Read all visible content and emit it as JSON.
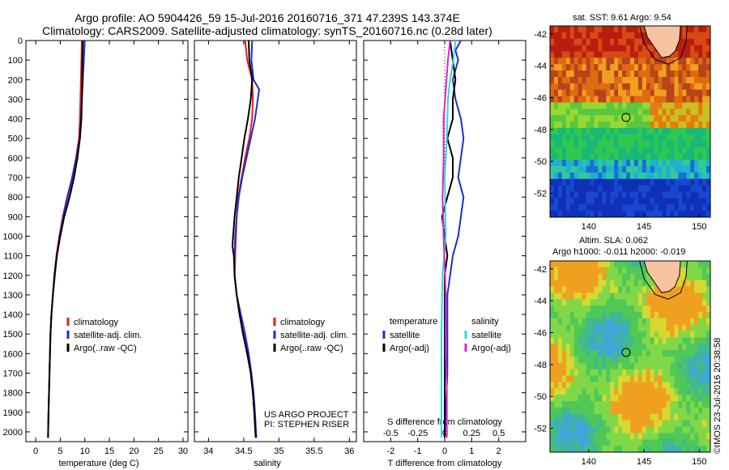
{
  "header": {
    "line1": "Argo profile: AO 5904426_59 15-Jul-2016 20160716_371 47.239S 143.374E",
    "line2": "Climatology: CARS2009. Satellite-adjusted climatology: synTS_20160716.nc (0.28d later)"
  },
  "colors": {
    "climatology": "#e41a1c",
    "satellite": "#1f2bd4",
    "argo": "#000000",
    "argo_salinity_diff": "#e020d0",
    "satellite_salinity_diff": "#30d8d8",
    "land": "#f7c3a0"
  },
  "chart_data": [
    {
      "type": "line",
      "panel": "temperature",
      "xlabel": "temperature (deg C)",
      "ylabel": "",
      "xlim": [
        -2,
        31
      ],
      "ylim": [
        2050,
        0
      ],
      "x_ticks": [
        0,
        5,
        10,
        15,
        20,
        25,
        30
      ],
      "y_ticks": [
        0,
        100,
        200,
        300,
        400,
        500,
        600,
        700,
        800,
        900,
        1000,
        1100,
        1200,
        1300,
        1400,
        1500,
        1600,
        1700,
        1800,
        1900,
        2000
      ],
      "legend_position": "lower-middle",
      "series": [
        {
          "name": "climatology",
          "color_key": "climatology",
          "points": [
            [
              9.4,
              0
            ],
            [
              9.3,
              100
            ],
            [
              9.2,
              200
            ],
            [
              9.1,
              300
            ],
            [
              9.0,
              400
            ],
            [
              8.8,
              500
            ],
            [
              8.2,
              600
            ],
            [
              7.4,
              700
            ],
            [
              6.4,
              800
            ],
            [
              5.5,
              900
            ],
            [
              4.8,
              1000
            ],
            [
              4.2,
              1100
            ],
            [
              3.8,
              1200
            ],
            [
              3.5,
              1300
            ],
            [
              3.2,
              1400
            ],
            [
              3.0,
              1500
            ],
            [
              2.9,
              1600
            ],
            [
              2.8,
              1700
            ],
            [
              2.7,
              1800
            ],
            [
              2.6,
              1900
            ],
            [
              2.5,
              2030
            ]
          ]
        },
        {
          "name": "satellite-adj. clim.",
          "color_key": "satellite",
          "points": [
            [
              10.0,
              0
            ],
            [
              9.8,
              100
            ],
            [
              9.6,
              200
            ],
            [
              9.4,
              300
            ],
            [
              9.2,
              400
            ],
            [
              9.0,
              500
            ],
            [
              8.3,
              600
            ],
            [
              7.5,
              700
            ],
            [
              6.5,
              800
            ],
            [
              5.6,
              900
            ],
            [
              4.9,
              1000
            ],
            [
              4.3,
              1100
            ],
            [
              3.9,
              1200
            ],
            [
              3.5,
              1300
            ],
            [
              3.2,
              1400
            ],
            [
              3.0,
              1500
            ],
            [
              2.9,
              1600
            ],
            [
              2.8,
              1700
            ],
            [
              2.7,
              1800
            ],
            [
              2.6,
              1900
            ],
            [
              2.5,
              2030
            ]
          ]
        },
        {
          "name": "Argo(..raw -QC)",
          "color_key": "argo",
          "points": [
            [
              9.6,
              0
            ],
            [
              9.5,
              100
            ],
            [
              9.5,
              200
            ],
            [
              9.4,
              300
            ],
            [
              9.3,
              400
            ],
            [
              9.0,
              500
            ],
            [
              8.5,
              600
            ],
            [
              7.8,
              700
            ],
            [
              6.9,
              800
            ],
            [
              5.8,
              900
            ],
            [
              5.0,
              1000
            ],
            [
              4.3,
              1100
            ],
            [
              3.8,
              1200
            ],
            [
              3.5,
              1300
            ],
            [
              3.2,
              1400
            ],
            [
              3.0,
              1500
            ],
            [
              2.9,
              1600
            ],
            [
              2.8,
              1700
            ],
            [
              2.7,
              1800
            ],
            [
              2.6,
              1900
            ],
            [
              2.5,
              2030
            ]
          ]
        }
      ],
      "legend": [
        "climatology",
        "satellite-adj. clim.",
        "Argo(..raw -QC)"
      ]
    },
    {
      "type": "line",
      "panel": "salinity",
      "xlabel": "salinity",
      "ylabel": "",
      "xlim": [
        33.8,
        36.1
      ],
      "ylim": [
        2050,
        0
      ],
      "x_ticks": [
        34,
        34.5,
        35,
        35.5,
        36
      ],
      "legend_position": "lower-right",
      "series": [
        {
          "name": "climatology",
          "color_key": "climatology",
          "points": [
            [
              34.52,
              0
            ],
            [
              34.55,
              100
            ],
            [
              34.62,
              200
            ],
            [
              34.63,
              300
            ],
            [
              34.62,
              400
            ],
            [
              34.58,
              500
            ],
            [
              34.52,
              600
            ],
            [
              34.47,
              700
            ],
            [
              34.42,
              800
            ],
            [
              34.4,
              900
            ],
            [
              34.39,
              1000
            ],
            [
              34.38,
              1100
            ],
            [
              34.37,
              1200
            ],
            [
              34.4,
              1300
            ],
            [
              34.45,
              1400
            ],
            [
              34.5,
              1500
            ],
            [
              34.55,
              1600
            ],
            [
              34.6,
              1700
            ],
            [
              34.63,
              1800
            ],
            [
              34.65,
              1900
            ],
            [
              34.67,
              2030
            ]
          ]
        },
        {
          "name": "satellite-adj. clim.",
          "color_key": "satellite",
          "points": [
            [
              34.62,
              0
            ],
            [
              34.61,
              100
            ],
            [
              34.64,
              200
            ],
            [
              34.72,
              250
            ],
            [
              34.7,
              300
            ],
            [
              34.66,
              400
            ],
            [
              34.6,
              500
            ],
            [
              34.54,
              600
            ],
            [
              34.48,
              700
            ],
            [
              34.43,
              800
            ],
            [
              34.4,
              900
            ],
            [
              34.38,
              1000
            ],
            [
              34.37,
              1100
            ],
            [
              34.37,
              1200
            ],
            [
              34.4,
              1300
            ],
            [
              34.46,
              1400
            ],
            [
              34.52,
              1500
            ],
            [
              34.57,
              1600
            ],
            [
              34.61,
              1700
            ],
            [
              34.64,
              1800
            ],
            [
              34.66,
              1900
            ],
            [
              34.68,
              2030
            ]
          ]
        },
        {
          "name": "Argo(..raw -QC)",
          "color_key": "argo",
          "points": [
            [
              34.57,
              0
            ],
            [
              34.58,
              100
            ],
            [
              34.62,
              200
            ],
            [
              34.6,
              300
            ],
            [
              34.56,
              400
            ],
            [
              34.51,
              500
            ],
            [
              34.47,
              600
            ],
            [
              34.43,
              700
            ],
            [
              34.4,
              800
            ],
            [
              34.37,
              900
            ],
            [
              34.35,
              1000
            ],
            [
              34.34,
              1050
            ],
            [
              34.36,
              1100
            ],
            [
              34.37,
              1200
            ],
            [
              34.4,
              1300
            ],
            [
              34.44,
              1400
            ],
            [
              34.49,
              1500
            ],
            [
              34.55,
              1600
            ],
            [
              34.6,
              1700
            ],
            [
              34.63,
              1800
            ],
            [
              34.65,
              1900
            ],
            [
              34.67,
              2030
            ]
          ]
        }
      ],
      "legend": [
        "climatology",
        "satellite-adj. clim.",
        "Argo(..raw -QC)"
      ],
      "annotations": [
        "US ARGO PROJECT",
        "PI: STEPHEN RISER"
      ]
    },
    {
      "type": "line",
      "panel": "difference",
      "xlabel": "T difference from climatology",
      "top_axis_label": "S difference from climatology",
      "xlim": [
        -3,
        3
      ],
      "top_xlim": [
        -0.75,
        0.75
      ],
      "ylim": [
        2050,
        0
      ],
      "x_ticks": [
        -2,
        -1,
        0,
        1,
        2
      ],
      "top_ticks": [
        -0.5,
        -0.25,
        0,
        0.25,
        0.5
      ],
      "legend_titles": [
        "temperature",
        "salinity"
      ],
      "series": [
        {
          "name": "satellite",
          "group": "temperature",
          "color_key": "satellite",
          "points": [
            [
              0.6,
              0
            ],
            [
              0.4,
              50
            ],
            [
              0.5,
              100
            ],
            [
              0.3,
              200
            ],
            [
              0.4,
              300
            ],
            [
              0.6,
              400
            ],
            [
              0.7,
              500
            ],
            [
              0.6,
              600
            ],
            [
              0.5,
              700
            ],
            [
              0.7,
              800
            ],
            [
              0.6,
              900
            ],
            [
              0.5,
              1000
            ],
            [
              0.3,
              1100
            ],
            [
              0.2,
              1200
            ],
            [
              0.1,
              1300
            ],
            [
              0.1,
              1400
            ],
            [
              0.1,
              1500
            ],
            [
              0.1,
              1700
            ],
            [
              0.0,
              2030
            ]
          ]
        },
        {
          "name": "Argo(-adj)",
          "group": "temperature",
          "color_key": "argo",
          "points": [
            [
              0.2,
              0
            ],
            [
              0.3,
              100
            ],
            [
              0.4,
              200
            ],
            [
              0.3,
              300
            ],
            [
              0.3,
              400
            ],
            [
              0.1,
              500
            ],
            [
              0.3,
              600
            ],
            [
              0.3,
              700
            ],
            [
              0.1,
              800
            ],
            [
              -0.1,
              900
            ],
            [
              0.0,
              1000
            ],
            [
              0.1,
              1100
            ],
            [
              0.0,
              1200
            ],
            [
              0.0,
              1400
            ],
            [
              0.0,
              1700
            ],
            [
              0.0,
              2030
            ]
          ]
        },
        {
          "name": "satellite",
          "group": "salinity",
          "color_key": "satellite_salinity_diff",
          "points": [
            [
              0.1,
              0
            ],
            [
              0.08,
              100
            ],
            [
              0.05,
              200
            ],
            [
              0.03,
              300
            ],
            [
              0.02,
              500
            ],
            [
              0.0,
              700
            ],
            [
              0.01,
              1000
            ],
            [
              -0.02,
              1200
            ],
            [
              -0.03,
              1500
            ],
            [
              -0.03,
              1800
            ],
            [
              -0.03,
              2030
            ]
          ]
        },
        {
          "name": "Argo(-adj)",
          "group": "salinity",
          "color_key": "argo_salinity_diff",
          "points": [
            [
              0.05,
              0
            ],
            [
              0.03,
              100
            ],
            [
              -0.01,
              400
            ],
            [
              -0.01,
              600
            ],
            [
              -0.02,
              800
            ],
            [
              -0.01,
              1000
            ],
            [
              0.01,
              1300
            ],
            [
              0.01,
              1600
            ],
            [
              0.02,
              1800
            ],
            [
              0.02,
              2030
            ]
          ]
        }
      ],
      "legend": [
        "satellite",
        "Argo(-adj)",
        "satellite",
        "Argo(-adj)"
      ]
    },
    {
      "type": "heatmap",
      "panel": "sst_map",
      "title": "sat. SST: 9.61 Argo: 9.54",
      "xlim": [
        136.5,
        151
      ],
      "ylim": [
        -53.5,
        -41.5
      ],
      "x_ticks": [
        140,
        145,
        150
      ],
      "y_ticks": [
        -42,
        -44,
        -46,
        -48,
        -50,
        -52
      ],
      "marker": {
        "lon": 143.374,
        "lat": -47.239
      }
    },
    {
      "type": "heatmap",
      "panel": "sla_map",
      "title": "Altim. SLA: 0.062",
      "subtitle": "Argo h1000: -0.011 h2000: -0.019",
      "xlim": [
        136.5,
        151
      ],
      "ylim": [
        -53.5,
        -41.5
      ],
      "x_ticks": [
        140,
        145,
        150
      ],
      "y_ticks": [
        -42,
        -44,
        -46,
        -48,
        -50,
        -52
      ],
      "marker": {
        "lon": 143.374,
        "lat": -47.239
      }
    }
  ],
  "footer": {
    "stamp": "©IMOS 23-Jul-2016 20:38:58"
  }
}
